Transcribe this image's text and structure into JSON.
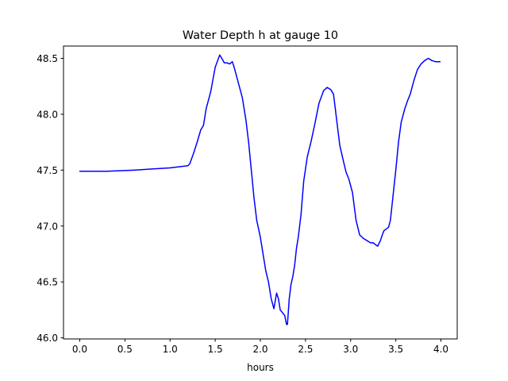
{
  "chart_data": {
    "type": "line",
    "title": "Water Depth h at gauge 10",
    "xlabel": "hours",
    "ylabel": "",
    "xlim": [
      -0.18,
      4.18
    ],
    "ylim": [
      45.99,
      48.61
    ],
    "xticks": [
      0.0,
      0.5,
      1.0,
      1.5,
      2.0,
      2.5,
      3.0,
      3.5,
      4.0
    ],
    "xtick_labels": [
      "0.0",
      "0.5",
      "1.0",
      "1.5",
      "2.0",
      "2.5",
      "3.0",
      "3.5",
      "4.0"
    ],
    "yticks": [
      46.0,
      46.5,
      47.0,
      47.5,
      48.0,
      48.5
    ],
    "ytick_labels": [
      "46.0",
      "46.5",
      "47.0",
      "47.5",
      "48.0",
      "48.5"
    ],
    "grid": false,
    "legend": "none",
    "series": [
      {
        "color": "#0000ff",
        "x": [
          0.0,
          0.3,
          0.6,
          0.8,
          1.0,
          1.1,
          1.2,
          1.22,
          1.26,
          1.3,
          1.34,
          1.37,
          1.4,
          1.45,
          1.5,
          1.55,
          1.58,
          1.6,
          1.63,
          1.66,
          1.69,
          1.71,
          1.75,
          1.8,
          1.84,
          1.87,
          1.9,
          1.93,
          1.96,
          2.0,
          2.03,
          2.06,
          2.09,
          2.12,
          2.15,
          2.18,
          2.2,
          2.22,
          2.24,
          2.25,
          2.27,
          2.29,
          2.3,
          2.32,
          2.34,
          2.36,
          2.38,
          2.4,
          2.42,
          2.45,
          2.48,
          2.52,
          2.56,
          2.6,
          2.65,
          2.7,
          2.74,
          2.78,
          2.81,
          2.83,
          2.86,
          2.88,
          2.92,
          2.95,
          2.98,
          3.02,
          3.06,
          3.1,
          3.14,
          3.16,
          3.18,
          3.2,
          3.22,
          3.25,
          3.28,
          3.3,
          3.33,
          3.35,
          3.37,
          3.39,
          3.42,
          3.44,
          3.46,
          3.5,
          3.53,
          3.56,
          3.6,
          3.63,
          3.66,
          3.7,
          3.74,
          3.78,
          3.82,
          3.86,
          3.9,
          3.94,
          3.97,
          3.99
        ],
        "y": [
          47.49,
          47.49,
          47.5,
          47.51,
          47.52,
          47.53,
          47.54,
          47.56,
          47.65,
          47.75,
          47.86,
          47.9,
          48.05,
          48.2,
          48.42,
          48.53,
          48.49,
          48.46,
          48.46,
          48.45,
          48.47,
          48.42,
          48.3,
          48.15,
          47.95,
          47.75,
          47.5,
          47.25,
          47.05,
          46.9,
          46.75,
          46.6,
          46.5,
          46.35,
          46.26,
          46.4,
          46.35,
          46.25,
          46.23,
          46.22,
          46.2,
          46.12,
          46.12,
          46.35,
          46.48,
          46.55,
          46.65,
          46.8,
          46.9,
          47.1,
          47.4,
          47.62,
          47.75,
          47.9,
          48.1,
          48.21,
          48.24,
          48.22,
          48.18,
          48.05,
          47.85,
          47.72,
          47.58,
          47.48,
          47.42,
          47.3,
          47.05,
          46.92,
          46.89,
          46.88,
          46.87,
          46.86,
          46.85,
          46.85,
          46.83,
          46.82,
          46.87,
          46.92,
          46.96,
          46.97,
          46.99,
          47.05,
          47.2,
          47.5,
          47.75,
          47.93,
          48.05,
          48.12,
          48.18,
          48.3,
          48.4,
          48.45,
          48.48,
          48.5,
          48.48,
          48.47,
          48.47,
          48.47
        ]
      }
    ]
  }
}
